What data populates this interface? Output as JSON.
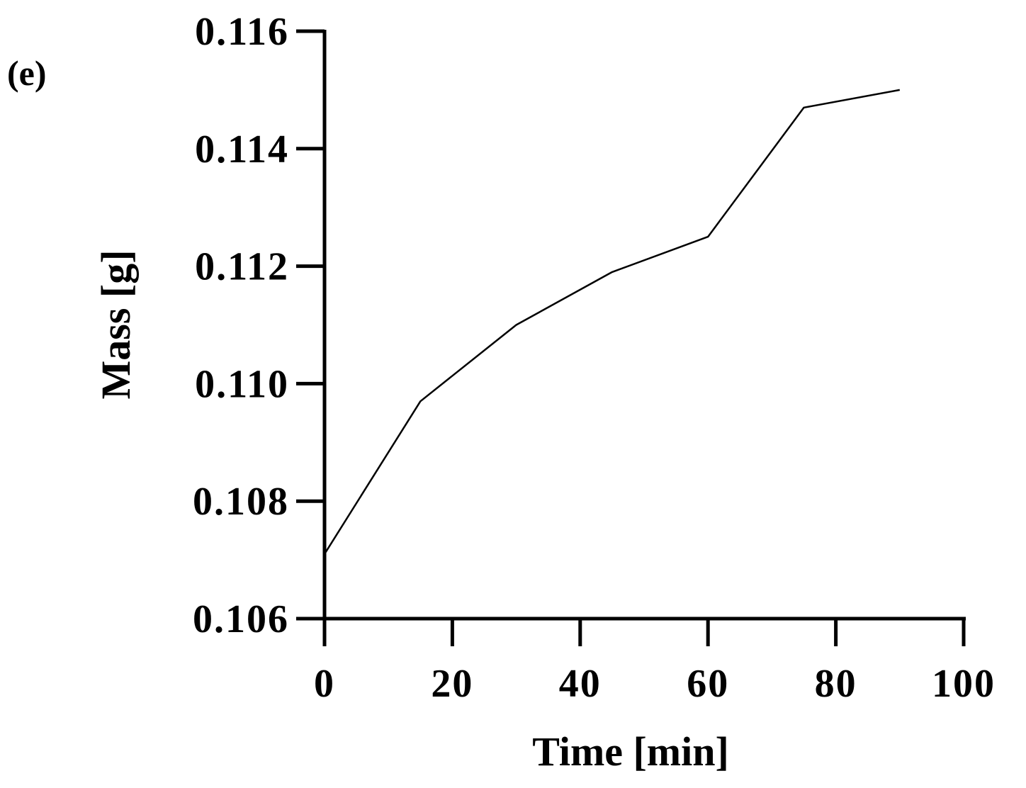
{
  "panel_label": "(e)",
  "chart_data": {
    "type": "line",
    "title": "",
    "xlabel": "Time [min]",
    "ylabel": "Mass [g]",
    "xlim": [
      0,
      100
    ],
    "ylim": [
      0.106,
      0.116
    ],
    "x_ticks": [
      "0",
      "20",
      "40",
      "60",
      "80",
      "100"
    ],
    "y_ticks": [
      "0.106",
      "0.108",
      "0.110",
      "0.112",
      "0.114",
      "0.116"
    ],
    "grid": false,
    "legend": "none",
    "series": [
      {
        "x": [
          0,
          15,
          30,
          45,
          60,
          75,
          90
        ],
        "values": [
          0.1071,
          0.1097,
          0.111,
          0.1119,
          0.1125,
          0.1147,
          0.115
        ]
      }
    ]
  }
}
